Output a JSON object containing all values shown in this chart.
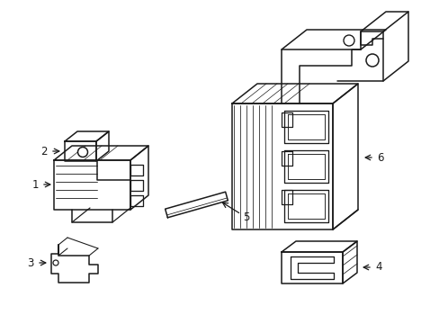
{
  "bg_color": "#ffffff",
  "line_color": "#1a1a1a",
  "line_width": 1.1,
  "label_fontsize": 8.5,
  "fig_width": 4.89,
  "fig_height": 3.6,
  "dpi": 100
}
